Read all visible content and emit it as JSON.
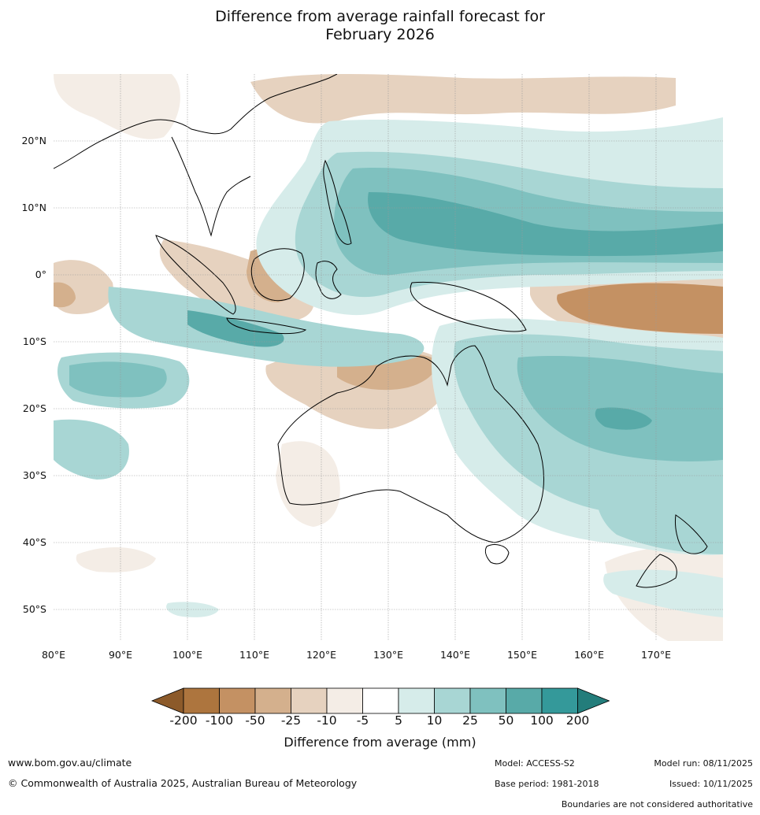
{
  "title_line1": "Difference from average rainfall forecast for",
  "title_line2": "February 2026",
  "lat_labels": [
    "20°N",
    "10°N",
    "0°",
    "10°S",
    "20°S",
    "30°S",
    "40°S",
    "50°S"
  ],
  "lon_labels": [
    "80°E",
    "90°E",
    "100°E",
    "110°E",
    "120°E",
    "130°E",
    "140°E",
    "150°E",
    "160°E",
    "170°E"
  ],
  "colorbar": {
    "title": "Difference from average (mm)",
    "tick_labels": [
      "-200",
      "-100",
      "-50",
      "-25",
      "-10",
      "-5",
      "5",
      "10",
      "25",
      "50",
      "100",
      "200"
    ],
    "colors": [
      "#8c5a2a",
      "#ad753e",
      "#c49163",
      "#d4b08d",
      "#e6d2bf",
      "#f4ede6",
      "#ffffff",
      "#d6ecea",
      "#a8d6d4",
      "#7fc1bf",
      "#58aaa8",
      "#34999a",
      "#237d7b"
    ]
  },
  "footer": {
    "website": "www.bom.gov.au/climate",
    "copyright": "© Commonwealth of Australia 2025, Australian Bureau of Meteorology",
    "model": "Model: ACCESS-S2",
    "base_period": "Base period: 1981-2018",
    "model_run": "Model run: 08/11/2025",
    "issued": "Issued: 10/11/2025",
    "disclaimer": "Boundaries are not considered authoritative"
  }
}
